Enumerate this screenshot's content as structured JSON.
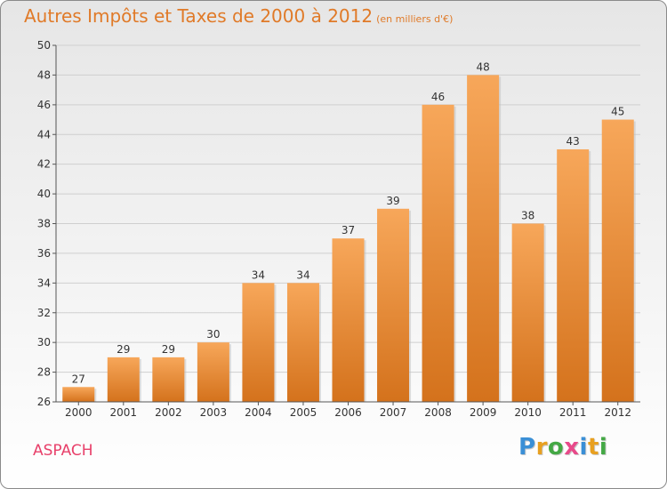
{
  "title": "Autres Impôts et Taxes de 2000 à 2012",
  "unit": "(en milliers d'€)",
  "place": "ASPACH",
  "logo": {
    "letters": [
      "P",
      "r",
      "o",
      "x",
      "i",
      "t",
      "i"
    ],
    "colors": [
      "#3a8fd6",
      "#e8a020",
      "#44a845",
      "#e84a8a",
      "#3a8fd6",
      "#e8a020",
      "#44a845"
    ]
  },
  "colors": {
    "bar_top": "#f7a75a",
    "bar_bottom": "#d4721c",
    "axis": "#555555",
    "grid": "#cfcfcf",
    "text": "#333333"
  },
  "chart_data": {
    "type": "bar",
    "categories": [
      "2000",
      "2001",
      "2002",
      "2003",
      "2004",
      "2005",
      "2006",
      "2007",
      "2008",
      "2009",
      "2010",
      "2011",
      "2012"
    ],
    "values": [
      27,
      29,
      29,
      30,
      34,
      34,
      37,
      39,
      46,
      48,
      38,
      43,
      45
    ],
    "ylim": [
      26,
      50
    ],
    "yticks": [
      26,
      28,
      30,
      32,
      34,
      36,
      38,
      40,
      42,
      44,
      46,
      48,
      50
    ],
    "grid": true,
    "data_labels": true
  }
}
